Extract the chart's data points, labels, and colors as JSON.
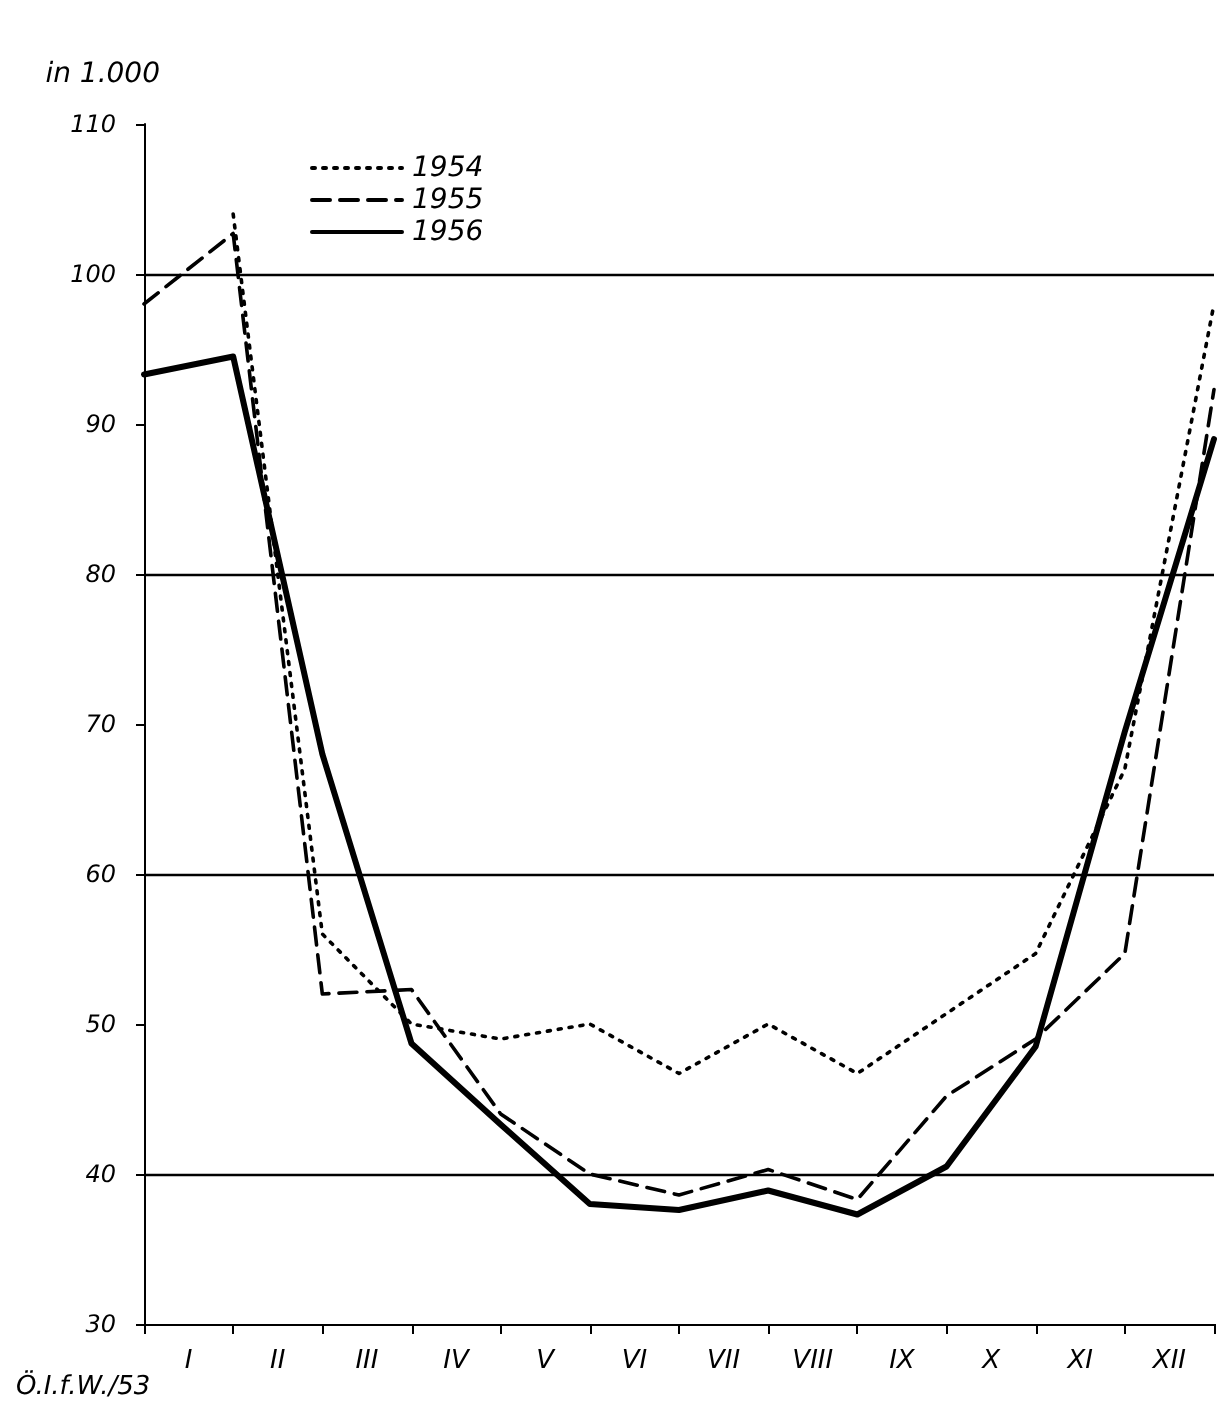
{
  "chart_data": {
    "type": "line",
    "ylabel": "in 1.000",
    "annotations": [
      "I",
      "II",
      "III",
      "IV",
      "V",
      "VI",
      "VII",
      "VIII",
      "IX",
      "X",
      "XI",
      "XII",
      "Ö.I.f.W./53"
    ],
    "categories": [
      null,
      null,
      null,
      null,
      null,
      null,
      null,
      null,
      null,
      null,
      null,
      null,
      null
    ],
    "ylim": [
      30,
      110
    ],
    "yticks": [
      30,
      40,
      50,
      60,
      70,
      80,
      90,
      100,
      110
    ],
    "series": [
      {
        "name": "1954",
        "color": "#000000",
        "line_style": "dotted",
        "values": [
          null,
          104,
          56,
          50,
          49,
          50,
          46.7,
          50,
          46.7,
          50.7,
          54.7,
          67,
          98
        ]
      },
      {
        "name": "1955",
        "color": "#000000",
        "line_style": "dashed",
        "values": [
          98,
          102.7,
          52,
          52.3,
          44,
          40,
          38.6,
          40.3,
          38.3,
          45.2,
          49,
          54.7,
          92.3
        ]
      },
      {
        "name": "1956",
        "color": "#000000",
        "line_style": "solid",
        "values": [
          93.3,
          94.5,
          68,
          48.7,
          43.3,
          38,
          37.6,
          38.9,
          37.3,
          40.5,
          48.5,
          69.5,
          89
        ]
      }
    ],
    "ref_lines": [
      {
        "axis": "y",
        "value": 40
      },
      {
        "axis": "y",
        "value": 60
      },
      {
        "axis": "y",
        "value": 80
      },
      {
        "axis": "y",
        "value": 100
      }
    ],
    "legend": "top left",
    "marker": "none"
  }
}
